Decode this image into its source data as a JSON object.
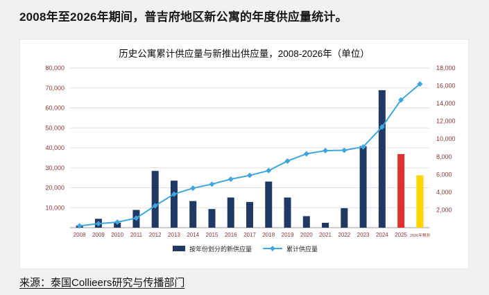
{
  "page": {
    "heading": "2008年至2026年期间，普吉府地区新公寓的年度供应量统计。",
    "source": "来源：泰国Collieers研究与传播部门"
  },
  "chart_data": {
    "type": "bar",
    "subtype": "combo-bar-line-dual-axis",
    "title": "历史公寓累计供应量与新推出供应量，2008-2026年（单位）",
    "categories": [
      "2008",
      "2009",
      "2010",
      "2011",
      "2012",
      "2013",
      "2014",
      "2015",
      "2016",
      "2017",
      "2018",
      "2019",
      "2020",
      "2021",
      "2022",
      "2023",
      "2024",
      "2025",
      "2026年预测"
    ],
    "series": [
      {
        "name": "按年份划分的新供应量",
        "type": "bar",
        "axis": "right",
        "values": [
          250,
          1000,
          550,
          2000,
          6400,
          5300,
          3000,
          2100,
          3400,
          2900,
          5200,
          3400,
          1300,
          550,
          2200,
          9200,
          15500,
          8300,
          5900
        ]
      },
      {
        "name": "累计供应量",
        "type": "line",
        "axis": "left",
        "values": [
          900,
          2000,
          2800,
          4800,
          11000,
          16800,
          19800,
          21800,
          24300,
          26200,
          28600,
          33400,
          37000,
          38600,
          38800,
          40500,
          50500,
          64000,
          72000
        ]
      }
    ],
    "left_axis": {
      "min": 0,
      "max": 80000,
      "tick_step": 10000,
      "tick_labels": [
        "10,000",
        "20,000",
        "30,000",
        "40,000",
        "50,000",
        "60,000",
        "70,000",
        "80,000"
      ]
    },
    "right_axis": {
      "min": 0,
      "max": 18000,
      "tick_step": 2000,
      "tick_labels": [
        "2,000",
        "4,000",
        "6,000",
        "8,000",
        "10,000",
        "12,000",
        "14,000",
        "16,000",
        "18,000"
      ]
    },
    "grid": true,
    "legend_position": "bottom",
    "colors": {
      "bar": "#203864",
      "bar_overrides": {
        "17": "#e03030",
        "18": "#ffd400"
      },
      "line": "#3ea6dc",
      "axis_labels": "#8b3333",
      "gridline": "#e0e0e0",
      "baseline": "#9a9a9a",
      "legend_text": "#222222"
    }
  }
}
